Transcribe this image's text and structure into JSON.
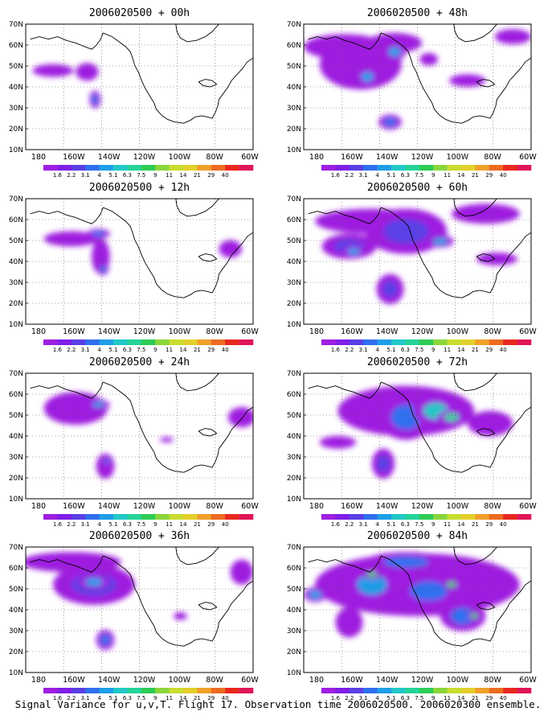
{
  "colors": {
    "scale": [
      "#9e1fe0",
      "#7f1ee8",
      "#5a3fe6",
      "#2f6fef",
      "#1f9ee8",
      "#22c8c8",
      "#25d39a",
      "#2dcc55",
      "#8ad63a",
      "#c8dd2f",
      "#e3cf2b",
      "#f0a02a",
      "#ee6b21",
      "#e8281f",
      "#e01556"
    ],
    "base": "#8a22dc",
    "land": "#ffffff"
  },
  "colorbar_labels": [
    "1.6",
    "2.2",
    "3.1",
    "4",
    "5.1",
    "6.3",
    "7.5",
    "9",
    "11",
    "14",
    "21",
    "29",
    "40"
  ],
  "axes": {
    "x_ticks": [
      "180",
      "160W",
      "140W",
      "120W",
      "100W",
      "80W",
      "60W"
    ],
    "y_ticks": [
      "10N",
      "20N",
      "30N",
      "40N",
      "50N",
      "60N",
      "70N"
    ]
  },
  "panels": [
    {
      "title": "2006020500 + 00h"
    },
    {
      "title": "2006020500 + 48h"
    },
    {
      "title": "2006020500 + 12h"
    },
    {
      "title": "2006020500 + 60h"
    },
    {
      "title": "2006020500 + 24h"
    },
    {
      "title": "2006020500 + 72h"
    },
    {
      "title": "2006020500 + 36h"
    },
    {
      "title": "2006020500 + 84h"
    }
  ],
  "caption": "Signal Variance for u,v,T. Flight 17. Observation time 2006020500. 2006020300 ensemble."
}
